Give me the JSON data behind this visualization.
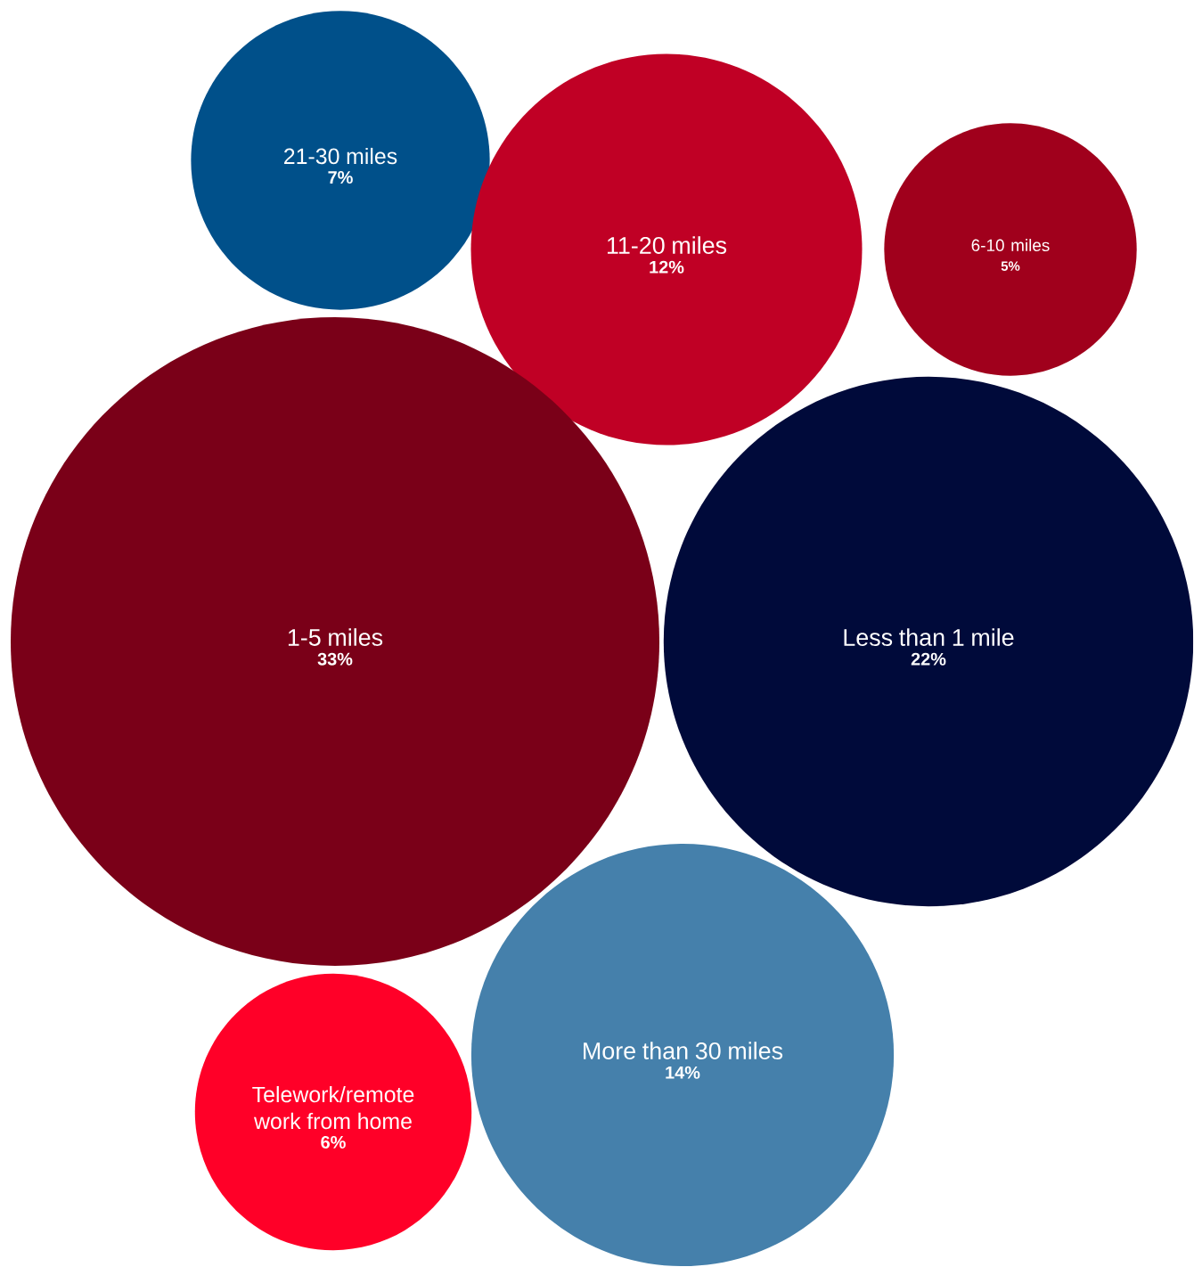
{
  "chart_data": {
    "type": "other",
    "categories": [
      "21-30 miles",
      "11-20 miles",
      "6-10 miles",
      "1-5 miles",
      "Less than 1 mile",
      "More than 30 miles",
      "Telework/remote work from home"
    ],
    "values": [
      7,
      12,
      5,
      33,
      22,
      14,
      6
    ],
    "value_labels": [
      "7%",
      "12%",
      "5%",
      "33%",
      "22%",
      "14%",
      "6%"
    ],
    "data_labels": true,
    "colors": [
      "#00508a",
      "#c00025",
      "#a0001c",
      "#7a0018",
      "#000a3a",
      "#4580ab",
      "#ff0028"
    ]
  }
}
